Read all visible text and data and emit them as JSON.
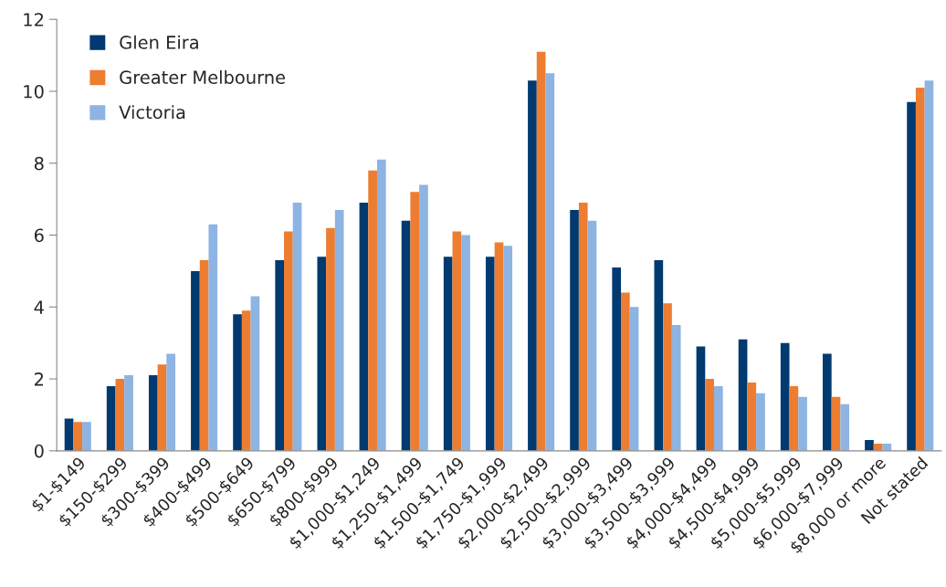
{
  "chart_data": {
    "type": "bar",
    "categories": [
      "$1-$149",
      "$150-$299",
      "$300-$399",
      "$400-$499",
      "$500-$649",
      "$650-$799",
      "$800-$999",
      "$1,000-$1,249",
      "$1,250-$1,499",
      "$1,500-$1,749",
      "$1,750-$1,999",
      "$2,000-$2,499",
      "$2,500-$2,999",
      "$3,000-$3,499",
      "$3,500-$3,999",
      "$4,000-$4,499",
      "$4,500-$4,999",
      "$5,000-$5,999",
      "$6,000-$7,999",
      "$8,000 or more",
      "Not stated"
    ],
    "series": [
      {
        "name": "Glen Eira",
        "color": "#003a70",
        "values": [
          0.9,
          1.8,
          2.1,
          5.0,
          3.8,
          5.3,
          5.4,
          6.9,
          6.4,
          5.4,
          5.4,
          10.3,
          6.7,
          5.1,
          5.3,
          2.9,
          3.1,
          3.0,
          2.7,
          0.3,
          9.7
        ]
      },
      {
        "name": "Greater Melbourne",
        "color": "#ed7d31",
        "values": [
          0.8,
          2.0,
          2.4,
          5.3,
          3.9,
          6.1,
          6.2,
          7.8,
          7.2,
          6.1,
          5.8,
          11.1,
          6.9,
          4.4,
          4.1,
          2.0,
          1.9,
          1.8,
          1.5,
          0.2,
          10.1
        ]
      },
      {
        "name": "Victoria",
        "color": "#8db4e2",
        "values": [
          0.8,
          2.1,
          2.7,
          6.3,
          4.3,
          6.9,
          6.7,
          8.1,
          7.4,
          6.0,
          5.7,
          10.5,
          6.4,
          4.0,
          3.5,
          1.8,
          1.6,
          1.5,
          1.3,
          0.2,
          10.3
        ]
      }
    ],
    "ylim": [
      0,
      12
    ],
    "yticks": [
      0,
      2,
      4,
      6,
      8,
      10,
      12
    ],
    "grid": false,
    "legend": "top left"
  }
}
